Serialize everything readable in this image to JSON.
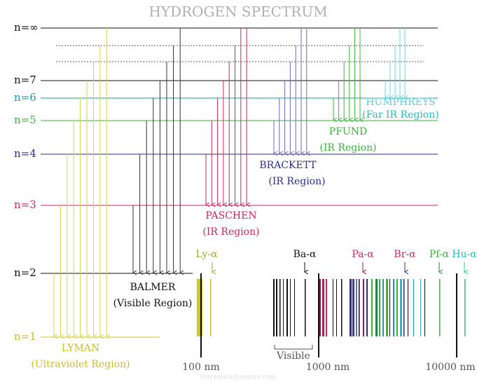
{
  "title": "HYDROGEN SPECTRUM",
  "levels": [
    {
      "label": "n=∞"
    },
    {
      "label": "n=7"
    },
    {
      "label": "n=6"
    },
    {
      "label": "n=5"
    },
    {
      "label": "n=4"
    },
    {
      "label": "n=3"
    },
    {
      "label": "n=2"
    },
    {
      "label": "n=1"
    }
  ],
  "series": [
    {
      "name": "LYMAN",
      "region": "(Ultraviolet Region)"
    },
    {
      "name": "BALMER",
      "region": "(Visible Region)"
    },
    {
      "name": "PASCHEN",
      "region": "(IR Region)"
    },
    {
      "name": "BRACKETT",
      "region": "(IR Region)"
    },
    {
      "name": "PFUND",
      "region": "(IR Region)"
    },
    {
      "name": "HUMPHREYS",
      "region": "(Far IR Region)"
    }
  ],
  "spectrum": {
    "lines": [
      "Ly-α",
      "Ba-α",
      "Pa-α",
      "Br-α",
      "Pf-α",
      "Hu-α"
    ],
    "axis": [
      "100 nm",
      "1000 nm",
      "10000 nm"
    ],
    "visible": "Visible"
  },
  "watermark": "Priyamstudycentre.com"
}
